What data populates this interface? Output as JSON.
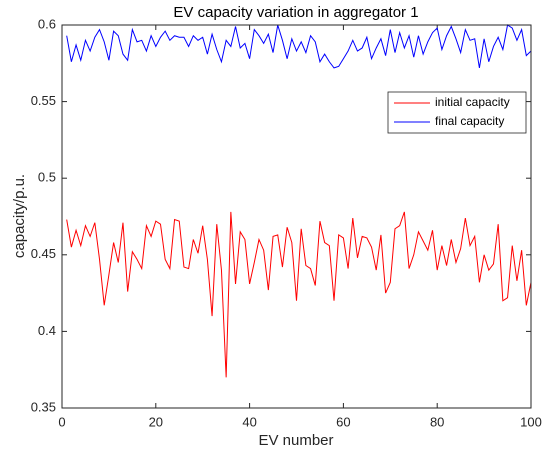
{
  "chart_data": {
    "type": "line",
    "title": "EV capacity variation in aggregator 1",
    "x_label": "EV number",
    "y_label": "capacity/p.u.",
    "x": [
      1,
      2,
      3,
      4,
      5,
      6,
      7,
      8,
      9,
      10,
      11,
      12,
      13,
      14,
      15,
      16,
      17,
      18,
      19,
      20,
      21,
      22,
      23,
      24,
      25,
      26,
      27,
      28,
      29,
      30,
      31,
      32,
      33,
      34,
      35,
      36,
      37,
      38,
      39,
      40,
      41,
      42,
      43,
      44,
      45,
      46,
      47,
      48,
      49,
      50,
      51,
      52,
      53,
      54,
      55,
      56,
      57,
      58,
      59,
      60,
      61,
      62,
      63,
      64,
      65,
      66,
      67,
      68,
      69,
      70,
      71,
      72,
      73,
      74,
      75,
      76,
      77,
      78,
      79,
      80,
      81,
      82,
      83,
      84,
      85,
      86,
      87,
      88,
      89,
      90,
      91,
      92,
      93,
      94,
      95,
      96,
      97,
      98,
      99,
      100
    ],
    "series": [
      {
        "name": "initial capacity",
        "color": "#ff0000",
        "values": [
          0.473,
          0.455,
          0.466,
          0.456,
          0.469,
          0.462,
          0.471,
          0.447,
          0.417,
          0.437,
          0.458,
          0.445,
          0.471,
          0.426,
          0.452,
          0.447,
          0.441,
          0.469,
          0.462,
          0.472,
          0.47,
          0.447,
          0.441,
          0.473,
          0.472,
          0.442,
          0.441,
          0.46,
          0.451,
          0.469,
          0.447,
          0.41,
          0.47,
          0.44,
          0.37,
          0.478,
          0.431,
          0.465,
          0.46,
          0.431,
          0.445,
          0.46,
          0.453,
          0.427,
          0.462,
          0.463,
          0.442,
          0.468,
          0.458,
          0.42,
          0.467,
          0.443,
          0.441,
          0.43,
          0.472,
          0.458,
          0.456,
          0.42,
          0.463,
          0.461,
          0.441,
          0.474,
          0.448,
          0.462,
          0.461,
          0.455,
          0.44,
          0.463,
          0.425,
          0.432,
          0.467,
          0.469,
          0.478,
          0.441,
          0.45,
          0.465,
          0.459,
          0.453,
          0.466,
          0.44,
          0.456,
          0.443,
          0.46,
          0.445,
          0.454,
          0.474,
          0.456,
          0.462,
          0.432,
          0.45,
          0.44,
          0.444,
          0.47,
          0.42,
          0.422,
          0.456,
          0.433,
          0.453,
          0.417,
          0.432
        ]
      },
      {
        "name": "final capacity",
        "color": "#0000ff",
        "values": [
          0.593,
          0.576,
          0.587,
          0.577,
          0.59,
          0.583,
          0.592,
          0.597,
          0.589,
          0.577,
          0.596,
          0.593,
          0.581,
          0.577,
          0.597,
          0.589,
          0.59,
          0.583,
          0.593,
          0.586,
          0.592,
          0.596,
          0.59,
          0.593,
          0.592,
          0.592,
          0.586,
          0.593,
          0.59,
          0.592,
          0.581,
          0.594,
          0.584,
          0.576,
          0.59,
          0.586,
          0.599,
          0.585,
          0.588,
          0.578,
          0.597,
          0.593,
          0.588,
          0.594,
          0.582,
          0.6,
          0.59,
          0.578,
          0.591,
          0.583,
          0.589,
          0.582,
          0.593,
          0.589,
          0.576,
          0.581,
          0.576,
          0.572,
          0.573,
          0.578,
          0.583,
          0.59,
          0.583,
          0.585,
          0.592,
          0.578,
          0.585,
          0.591,
          0.58,
          0.597,
          0.582,
          0.595,
          0.585,
          0.593,
          0.579,
          0.593,
          0.581,
          0.589,
          0.595,
          0.598,
          0.584,
          0.593,
          0.599,
          0.591,
          0.582,
          0.597,
          0.59,
          0.591,
          0.572,
          0.591,
          0.576,
          0.586,
          0.592,
          0.584,
          0.6,
          0.598,
          0.59,
          0.597,
          0.58,
          0.583
        ]
      }
    ],
    "xlim": [
      0,
      100
    ],
    "xticks": [
      0,
      20,
      40,
      60,
      80,
      100
    ],
    "ylim": [
      0.35,
      0.6
    ],
    "yticks": [
      0.35,
      0.4,
      0.45,
      0.5,
      0.55,
      0.6
    ],
    "legend": "northeast",
    "grid": false
  }
}
